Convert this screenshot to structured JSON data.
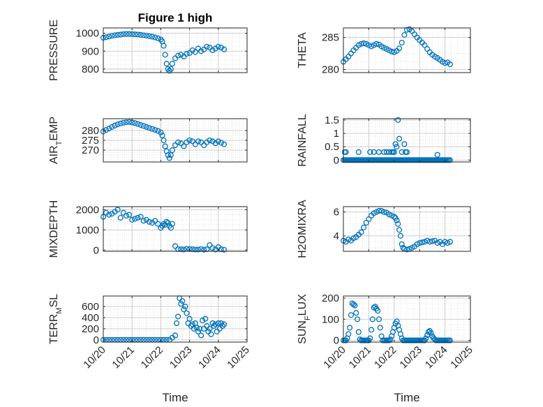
{
  "figure": {
    "title": "Figure 1 high"
  },
  "colors": {
    "marker": "#0072BD",
    "axis": "#262626",
    "grid": "#c8c8c8",
    "minor_grid": "#dedede"
  },
  "chart_data": [
    {
      "type": "scatter",
      "ylabel": "PRESSURE",
      "ylabel_sub": "",
      "ylabel_rest": "",
      "xlim": [
        20,
        25
      ],
      "ylim": [
        780,
        1030
      ],
      "yticks": [
        800,
        900,
        1000
      ],
      "ytick_labels": [
        "800",
        "900",
        "1000"
      ],
      "show_xticklabels": false,
      "xlabel": "",
      "grid": true,
      "x": [
        20.0,
        20.1,
        20.2,
        20.3,
        20.4,
        20.5,
        20.6,
        20.7,
        20.8,
        20.9,
        21.0,
        21.1,
        21.2,
        21.3,
        21.4,
        21.5,
        21.6,
        21.7,
        21.8,
        21.9,
        22.0,
        22.05,
        22.1,
        22.15,
        22.2,
        22.25,
        22.3,
        22.35,
        22.4,
        22.5,
        22.6,
        22.7,
        22.8,
        22.9,
        23.0,
        23.1,
        23.2,
        23.3,
        23.4,
        23.5,
        23.6,
        23.7,
        23.8,
        23.9,
        24.0,
        24.1,
        24.2
      ],
      "y": [
        975,
        978,
        982,
        986,
        989,
        991,
        993,
        995,
        996,
        996,
        995,
        994,
        993,
        991,
        989,
        987,
        984,
        981,
        977,
        972,
        965,
        955,
        930,
        880,
        830,
        800,
        790,
        800,
        830,
        860,
        875,
        880,
        870,
        885,
        890,
        905,
        895,
        915,
        900,
        910,
        925,
        920,
        905,
        915,
        925,
        920,
        910
      ]
    },
    {
      "type": "scatter",
      "ylabel": "THETA",
      "ylabel_sub": "",
      "ylabel_rest": "",
      "xlim": [
        20,
        25
      ],
      "ylim": [
        279.5,
        286.5
      ],
      "yticks": [
        280,
        285
      ],
      "ytick_labels": [
        "280",
        "285"
      ],
      "show_xticklabels": false,
      "xlabel": "",
      "grid": true,
      "x": [
        20.0,
        20.1,
        20.2,
        20.3,
        20.4,
        20.5,
        20.6,
        20.7,
        20.8,
        20.9,
        21.0,
        21.1,
        21.2,
        21.3,
        21.4,
        21.5,
        21.6,
        21.7,
        21.8,
        21.9,
        22.0,
        22.1,
        22.2,
        22.3,
        22.4,
        22.5,
        22.6,
        22.7,
        22.8,
        22.9,
        23.0,
        23.1,
        23.2,
        23.3,
        23.4,
        23.5,
        23.6,
        23.7,
        23.8,
        23.9,
        24.0,
        24.1,
        24.2
      ],
      "y": [
        281.2,
        281.6,
        282.0,
        282.5,
        283.0,
        283.4,
        283.8,
        284.0,
        284.1,
        284.0,
        283.8,
        283.6,
        283.8,
        284.0,
        283.9,
        283.6,
        283.4,
        283.2,
        283.0,
        282.8,
        282.7,
        282.9,
        283.3,
        284.2,
        285.4,
        286.2,
        286.3,
        286.0,
        285.5,
        285.0,
        284.6,
        284.2,
        283.8,
        283.2,
        282.7,
        282.3,
        282.0,
        281.8,
        281.5,
        281.2,
        281.0,
        281.1,
        280.8
      ]
    },
    {
      "type": "scatter",
      "ylabel": "AIR",
      "ylabel_sub": "T",
      "ylabel_rest": "EMP",
      "xlim": [
        20,
        25
      ],
      "ylim": [
        264,
        286
      ],
      "yticks": [
        270,
        275,
        280
      ],
      "ytick_labels": [
        "270",
        "275",
        "280"
      ],
      "show_xticklabels": false,
      "xlabel": "",
      "grid": true,
      "x": [
        20.0,
        20.1,
        20.2,
        20.3,
        20.4,
        20.5,
        20.6,
        20.7,
        20.8,
        20.9,
        21.0,
        21.1,
        21.2,
        21.3,
        21.4,
        21.5,
        21.6,
        21.7,
        21.8,
        21.9,
        22.0,
        22.05,
        22.1,
        22.15,
        22.2,
        22.25,
        22.3,
        22.35,
        22.4,
        22.5,
        22.6,
        22.7,
        22.8,
        22.9,
        23.0,
        23.1,
        23.2,
        23.3,
        23.4,
        23.5,
        23.6,
        23.7,
        23.8,
        23.9,
        24.0,
        24.1,
        24.2
      ],
      "y": [
        279.5,
        280.3,
        281.0,
        281.8,
        282.5,
        283.1,
        283.6,
        284.0,
        284.2,
        284.3,
        284.1,
        283.8,
        283.3,
        282.8,
        282.3,
        281.8,
        281.3,
        280.8,
        280.3,
        279.8,
        279.0,
        277.5,
        275.0,
        272.0,
        269.5,
        267.5,
        266.0,
        267.5,
        270.0,
        272.5,
        274.0,
        273.5,
        272.0,
        274.0,
        275.0,
        274.5,
        273.0,
        274.5,
        274.0,
        272.5,
        274.0,
        275.0,
        274.5,
        273.5,
        274.5,
        273.8,
        273.0
      ]
    },
    {
      "type": "scatter",
      "ylabel": "RAINFALL",
      "ylabel_sub": "",
      "ylabel_rest": "",
      "xlim": [
        20,
        25
      ],
      "ylim": [
        -0.07,
        1.55
      ],
      "yticks": [
        0,
        0.5,
        1,
        1.5
      ],
      "ytick_labels": [
        "0",
        "0.5",
        "1",
        "1.5"
      ],
      "show_xticklabels": false,
      "xlabel": "",
      "grid": true,
      "x": [
        20.0,
        20.05,
        20.1,
        20.15,
        20.2,
        20.25,
        20.3,
        20.35,
        20.4,
        20.45,
        20.5,
        20.55,
        20.6,
        20.65,
        20.7,
        20.75,
        20.8,
        20.85,
        20.9,
        20.95,
        21.0,
        21.05,
        21.1,
        21.15,
        21.2,
        21.25,
        21.3,
        21.35,
        21.4,
        21.45,
        21.5,
        21.55,
        21.6,
        21.65,
        21.7,
        21.75,
        21.8,
        21.85,
        21.9,
        21.95,
        22.0,
        22.05,
        22.1,
        22.15,
        22.2,
        22.25,
        22.3,
        22.35,
        22.4,
        22.45,
        22.5,
        22.55,
        22.6,
        22.65,
        22.7,
        22.75,
        22.8,
        22.85,
        22.9,
        22.95,
        23.0,
        23.05,
        23.1,
        23.15,
        23.2,
        23.25,
        23.3,
        23.35,
        23.4,
        23.45,
        23.5,
        23.55,
        23.6,
        23.65,
        23.7,
        23.75,
        23.8,
        23.85,
        23.9,
        23.95,
        24.0,
        24.05,
        24.1,
        24.15,
        24.2,
        20.05,
        20.1,
        20.6,
        21.05,
        21.2,
        21.4,
        21.6,
        21.7,
        21.8,
        21.9,
        21.95,
        22.0,
        22.05,
        22.1,
        22.15,
        22.2,
        22.3,
        22.4,
        22.45,
        22.5,
        23.7
      ],
      "y": [
        0,
        0,
        0,
        0,
        0,
        0,
        0,
        0,
        0,
        0,
        0,
        0,
        0,
        0,
        0,
        0,
        0,
        0,
        0,
        0,
        0,
        0,
        0,
        0,
        0,
        0,
        0,
        0,
        0,
        0,
        0,
        0,
        0,
        0,
        0,
        0,
        0,
        0,
        0,
        0,
        0,
        0,
        0,
        0,
        0,
        0,
        0,
        0,
        0,
        0,
        0,
        0,
        0,
        0,
        0,
        0,
        0,
        0,
        0,
        0,
        0,
        0,
        0,
        0,
        0,
        0,
        0,
        0,
        0,
        0,
        0,
        0,
        0,
        0,
        0,
        0,
        0,
        0,
        0,
        0,
        0,
        0,
        0,
        0,
        0,
        0.3,
        0.3,
        0.3,
        0.3,
        0.3,
        0.3,
        0.3,
        0.3,
        0.3,
        0.3,
        0.3,
        0.3,
        0.6,
        0.5,
        1.5,
        0.8,
        0.3,
        0.6,
        0.3,
        0.3,
        0.2
      ]
    },
    {
      "type": "scatter",
      "ylabel": "MIXDEPTH",
      "ylabel_sub": "",
      "ylabel_rest": "",
      "xlim": [
        20,
        25
      ],
      "ylim": [
        -60,
        2150
      ],
      "yticks": [
        0,
        1000,
        2000
      ],
      "ytick_labels": [
        "0",
        "1000",
        "2000"
      ],
      "show_xticklabels": false,
      "xlabel": "",
      "grid": true,
      "x": [
        20.0,
        20.1,
        20.2,
        20.3,
        20.4,
        20.5,
        20.6,
        20.7,
        20.8,
        20.9,
        21.0,
        21.1,
        21.2,
        21.3,
        21.4,
        21.5,
        21.6,
        21.7,
        21.8,
        21.9,
        22.0,
        22.05,
        22.1,
        22.15,
        22.2,
        22.25,
        22.3,
        22.35,
        22.4,
        22.5,
        22.6,
        22.7,
        22.8,
        22.9,
        23.0,
        23.1,
        23.2,
        23.3,
        23.4,
        23.5,
        23.6,
        23.7,
        23.8,
        23.9,
        24.0,
        24.1,
        24.2
      ],
      "y": [
        1650,
        1850,
        1750,
        1800,
        1900,
        2000,
        1600,
        1850,
        1700,
        1750,
        1500,
        1550,
        1600,
        1650,
        1450,
        1500,
        1400,
        1350,
        1450,
        1300,
        1100,
        1200,
        1300,
        1250,
        1400,
        1350,
        1200,
        1100,
        1300,
        200,
        50,
        40,
        30,
        60,
        50,
        40,
        30,
        30,
        50,
        20,
        40,
        250,
        100,
        30,
        150,
        40,
        20
      ]
    },
    {
      "type": "scatter",
      "ylabel": "H2OMIXRA",
      "ylabel_sub": "",
      "ylabel_rest": "",
      "xlim": [
        20,
        25
      ],
      "ylim": [
        2.7,
        6.45
      ],
      "yticks": [
        4,
        6
      ],
      "ytick_labels": [
        "4",
        "6"
      ],
      "show_xticklabels": false,
      "xlabel": "",
      "grid": true,
      "x": [
        20.0,
        20.1,
        20.2,
        20.3,
        20.4,
        20.5,
        20.6,
        20.7,
        20.8,
        20.9,
        21.0,
        21.1,
        21.2,
        21.3,
        21.4,
        21.5,
        21.6,
        21.7,
        21.8,
        21.9,
        22.0,
        22.05,
        22.1,
        22.15,
        22.2,
        22.25,
        22.3,
        22.35,
        22.4,
        22.5,
        22.6,
        22.7,
        22.8,
        22.9,
        23.0,
        23.1,
        23.2,
        23.3,
        23.4,
        23.5,
        23.6,
        23.7,
        23.8,
        23.9,
        24.0,
        24.1,
        24.2
      ],
      "y": [
        3.6,
        3.5,
        3.7,
        3.6,
        3.8,
        3.9,
        4.1,
        4.3,
        4.7,
        5.1,
        5.4,
        5.7,
        5.9,
        6.0,
        6.1,
        6.1,
        6.0,
        5.95,
        5.8,
        5.7,
        5.6,
        5.5,
        5.3,
        5.0,
        4.5,
        4.0,
        3.3,
        3.0,
        2.9,
        2.85,
        2.9,
        3.0,
        3.1,
        3.3,
        3.4,
        3.45,
        3.5,
        3.6,
        3.5,
        3.55,
        3.6,
        3.4,
        3.5,
        3.3,
        3.5,
        3.4,
        3.5
      ]
    },
    {
      "type": "scatter",
      "ylabel": "TERR",
      "ylabel_sub": "M",
      "ylabel_rest": "SL",
      "xlim": [
        20,
        25
      ],
      "ylim": [
        -40,
        790
      ],
      "yticks": [
        0,
        200,
        400,
        600
      ],
      "ytick_labels": [
        "0",
        "200",
        "400",
        "600"
      ],
      "show_xticklabels": true,
      "xlabel": "Time",
      "grid": true,
      "xticks": [
        20,
        21,
        22,
        23,
        24,
        25
      ],
      "xtick_labels": [
        "10/20",
        "10/21",
        "10/22",
        "10/23",
        "10/24",
        "10/25"
      ],
      "x": [
        20.0,
        20.1,
        20.2,
        20.3,
        20.4,
        20.5,
        20.6,
        20.7,
        20.8,
        20.9,
        21.0,
        21.1,
        21.2,
        21.3,
        21.4,
        21.5,
        21.6,
        21.7,
        21.8,
        21.9,
        22.0,
        22.1,
        22.2,
        22.3,
        22.4,
        22.5,
        22.55,
        22.6,
        22.65,
        22.7,
        22.75,
        22.8,
        22.85,
        22.9,
        22.95,
        23.0,
        23.05,
        23.1,
        23.15,
        23.2,
        23.25,
        23.3,
        23.35,
        23.4,
        23.45,
        23.5,
        23.55,
        23.6,
        23.65,
        23.7,
        23.75,
        23.8,
        23.85,
        23.9,
        23.95,
        24.0,
        24.05,
        24.1,
        24.15,
        24.2
      ],
      "y": [
        0,
        0,
        0,
        0,
        0,
        0,
        0,
        0,
        0,
        0,
        0,
        0,
        0,
        0,
        0,
        0,
        0,
        0,
        0,
        0,
        0,
        0,
        0,
        0,
        40,
        80,
        300,
        420,
        750,
        650,
        700,
        550,
        600,
        480,
        300,
        380,
        250,
        280,
        200,
        300,
        220,
        150,
        200,
        80,
        350,
        200,
        380,
        250,
        150,
        200,
        100,
        300,
        250,
        280,
        150,
        300,
        200,
        300,
        250,
        280
      ]
    },
    {
      "type": "scatter",
      "ylabel": "SUN",
      "ylabel_sub": "F",
      "ylabel_rest": "LUX",
      "xlim": [
        20,
        25
      ],
      "ylim": [
        -8,
        210
      ],
      "yticks": [
        0,
        100,
        200
      ],
      "ytick_labels": [
        "0",
        "100",
        "200"
      ],
      "show_xticklabels": true,
      "xlabel": "Time",
      "grid": true,
      "xticks": [
        20,
        21,
        22,
        23,
        24,
        25
      ],
      "xtick_labels": [
        "10/20",
        "10/21",
        "10/22",
        "10/23",
        "10/24",
        "10/25"
      ],
      "x": [
        20.0,
        20.05,
        20.1,
        20.15,
        20.2,
        20.25,
        20.3,
        20.35,
        20.4,
        20.45,
        20.5,
        20.55,
        20.6,
        20.65,
        20.7,
        20.75,
        20.8,
        20.85,
        20.9,
        20.95,
        21.0,
        21.05,
        21.1,
        21.15,
        21.2,
        21.25,
        21.3,
        21.35,
        21.4,
        21.45,
        21.5,
        21.55,
        21.6,
        21.65,
        21.7,
        21.75,
        21.8,
        21.85,
        21.9,
        21.95,
        22.0,
        22.05,
        22.1,
        22.15,
        22.2,
        22.25,
        22.3,
        22.35,
        22.4,
        22.45,
        22.5,
        22.55,
        22.6,
        22.65,
        22.7,
        22.75,
        22.8,
        22.85,
        22.9,
        22.95,
        23.0,
        23.05,
        23.1,
        23.15,
        23.2,
        23.25,
        23.3,
        23.35,
        23.4,
        23.45,
        23.5,
        23.55,
        23.6,
        23.65,
        23.7,
        23.75,
        23.8,
        23.85,
        23.9,
        23.95,
        24.0,
        24.05,
        24.1,
        24.15,
        24.2
      ],
      "y": [
        0,
        0,
        0,
        10,
        30,
        60,
        120,
        175,
        170,
        165,
        130,
        100,
        40,
        5,
        0,
        0,
        0,
        0,
        0,
        0,
        0,
        10,
        50,
        100,
        155,
        160,
        150,
        140,
        100,
        60,
        20,
        0,
        0,
        0,
        0,
        0,
        0,
        5,
        20,
        40,
        60,
        80,
        90,
        70,
        50,
        30,
        10,
        0,
        0,
        0,
        0,
        0,
        0,
        0,
        0,
        0,
        0,
        0,
        0,
        0,
        0,
        0,
        0,
        0,
        0,
        10,
        25,
        40,
        45,
        35,
        20,
        10,
        5,
        0,
        0,
        0,
        0,
        0,
        0,
        0,
        0,
        0,
        0,
        0,
        0
      ]
    }
  ]
}
